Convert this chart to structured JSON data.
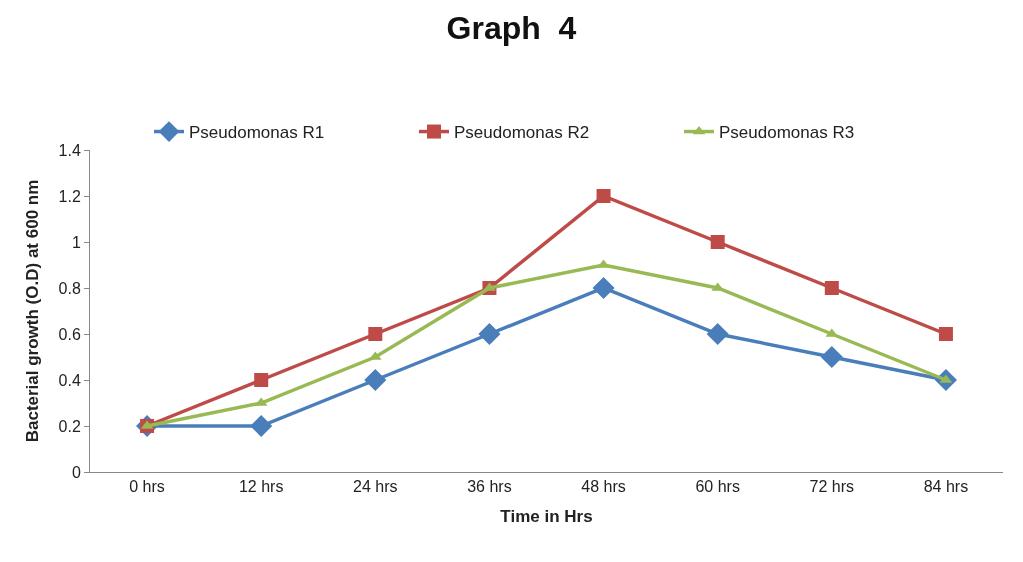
{
  "chart_data": {
    "type": "line",
    "title": "Graph  4",
    "xlabel": "Time in Hrs",
    "ylabel": "Bacterial growth (O.D) at 600 nm",
    "categories": [
      "0 hrs",
      "12 hrs",
      "24 hrs",
      "36 hrs",
      "48 hrs",
      "60 hrs",
      "72 hrs",
      "84 hrs"
    ],
    "series": [
      {
        "name": "Pseudomonas R1",
        "color": "#4a7ebb",
        "marker": "diamond",
        "values": [
          0.2,
          0.2,
          0.4,
          0.6,
          0.8,
          0.6,
          0.5,
          0.4
        ]
      },
      {
        "name": "Pseudomonas R2",
        "color": "#be4b48",
        "marker": "square",
        "values": [
          0.2,
          0.4,
          0.6,
          0.8,
          1.2,
          1.0,
          0.8,
          0.6
        ]
      },
      {
        "name": "Pseudomonas R3",
        "color": "#98b954",
        "marker": "triangle",
        "values": [
          0.2,
          0.3,
          0.5,
          0.8,
          0.9,
          0.8,
          0.6,
          0.4
        ]
      }
    ],
    "ylim": [
      0,
      1.4
    ],
    "yticks": [
      0,
      0.2,
      0.4,
      0.6,
      0.8,
      1,
      1.2,
      1.4
    ],
    "grid": false,
    "legend": "top",
    "line_style": "solid"
  }
}
